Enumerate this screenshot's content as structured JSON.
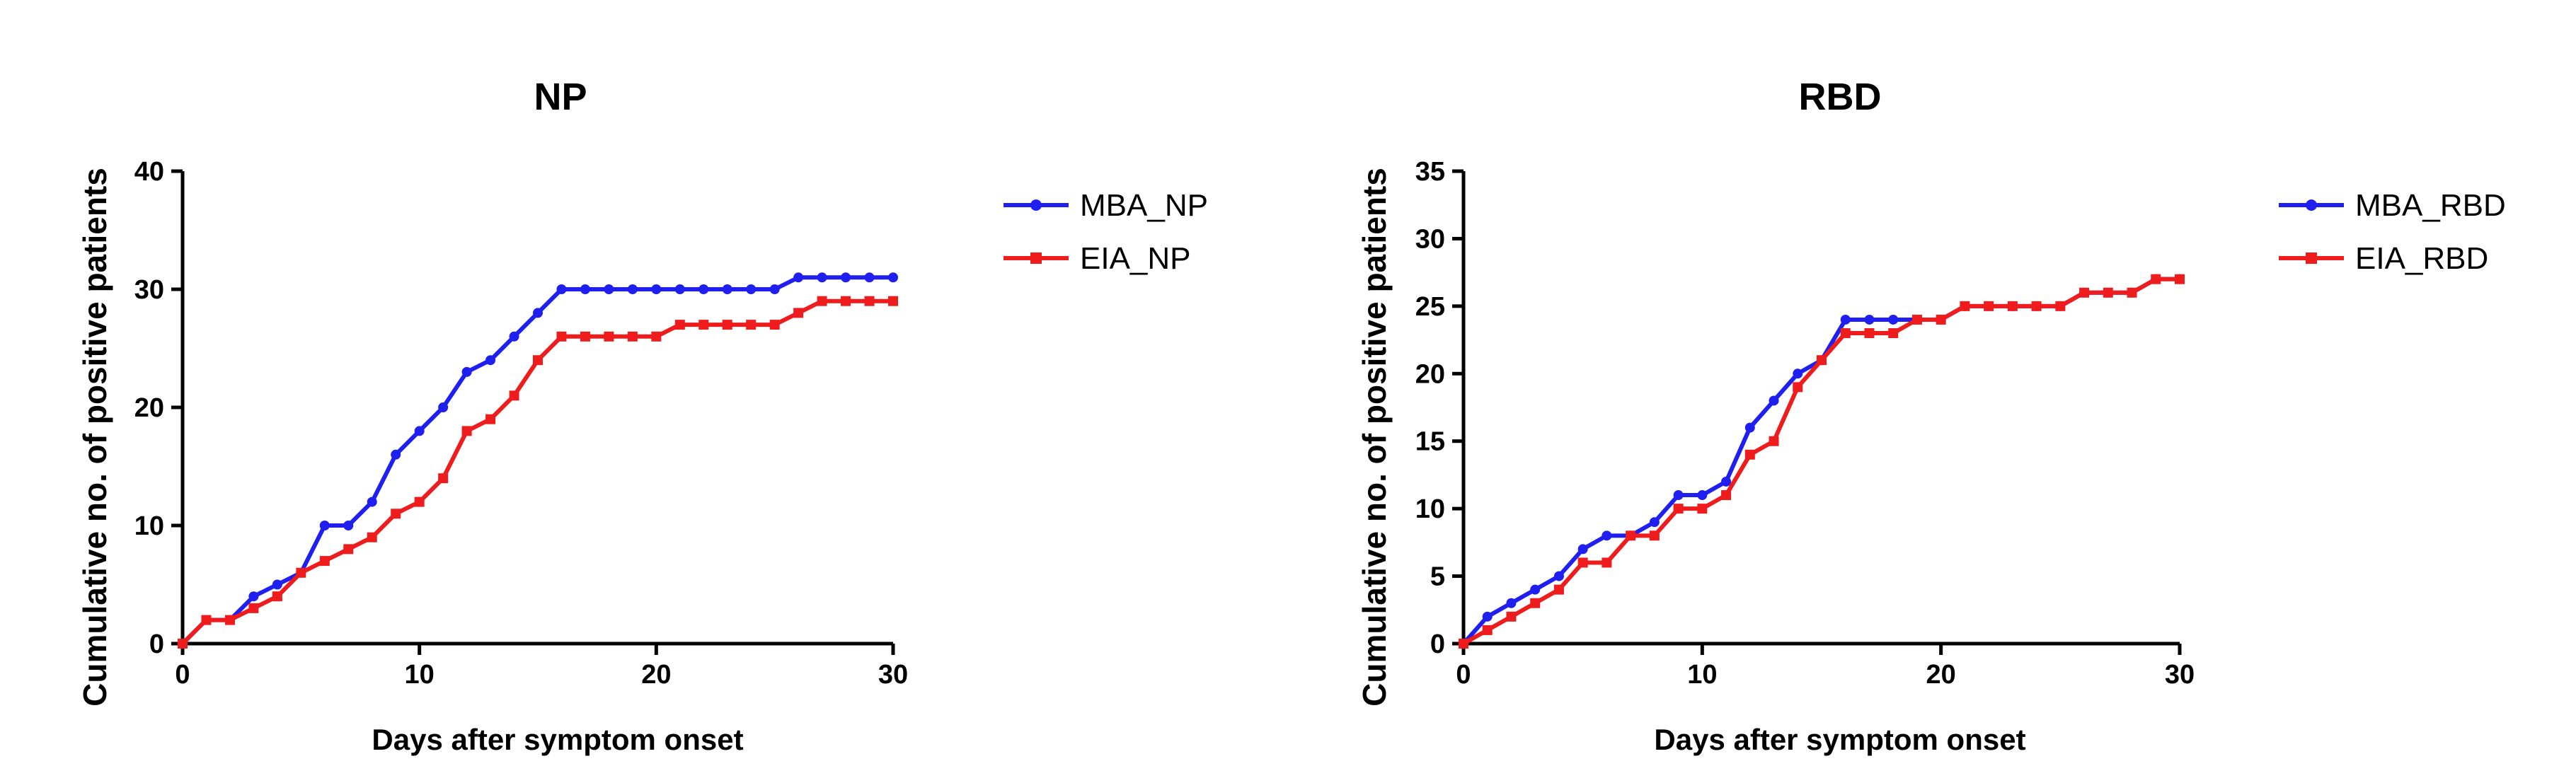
{
  "chart_data": [
    {
      "type": "line",
      "title": "NP",
      "xlabel": "Days after symptom onset",
      "ylabel": "Cumulative no. of positive patients",
      "xlim": [
        0,
        30
      ],
      "ylim": [
        0,
        40
      ],
      "xticks": [
        0,
        10,
        20,
        30
      ],
      "yticks": [
        0,
        10,
        20,
        30,
        40
      ],
      "legend_position": "right",
      "x": [
        0,
        1,
        2,
        3,
        4,
        5,
        6,
        7,
        8,
        9,
        10,
        11,
        12,
        13,
        14,
        15,
        16,
        17,
        18,
        19,
        20,
        21,
        22,
        23,
        24,
        25,
        26,
        27,
        28,
        29,
        30
      ],
      "series": [
        {
          "name": "MBA_NP",
          "color": "#1f1ff0",
          "marker": "circle",
          "values": [
            0,
            2,
            2,
            4,
            5,
            6,
            10,
            10,
            12,
            16,
            18,
            20,
            23,
            24,
            26,
            28,
            30,
            30,
            30,
            30,
            30,
            30,
            30,
            30,
            30,
            30,
            31,
            31,
            31,
            31,
            31
          ]
        },
        {
          "name": "EIA_NP",
          "color": "#ee1c1c",
          "marker": "square",
          "values": [
            0,
            2,
            2,
            3,
            4,
            6,
            7,
            8,
            9,
            11,
            12,
            14,
            18,
            19,
            21,
            24,
            26,
            26,
            26,
            26,
            26,
            27,
            27,
            27,
            27,
            27,
            28,
            29,
            29,
            29,
            29
          ]
        }
      ]
    },
    {
      "type": "line",
      "title": "RBD",
      "xlabel": "Days after symptom onset",
      "ylabel": "Cumulative no. of positive patients",
      "xlim": [
        0,
        30
      ],
      "ylim": [
        0,
        35
      ],
      "xticks": [
        0,
        10,
        20,
        30
      ],
      "yticks": [
        0,
        5,
        10,
        15,
        20,
        25,
        30,
        35
      ],
      "legend_position": "right",
      "x": [
        0,
        1,
        2,
        3,
        4,
        5,
        6,
        7,
        8,
        9,
        10,
        11,
        12,
        13,
        14,
        15,
        16,
        17,
        18,
        19,
        20,
        21,
        22,
        23,
        24,
        25,
        26,
        27,
        28,
        29,
        30
      ],
      "series": [
        {
          "name": "MBA_RBD",
          "color": "#1f1ff0",
          "marker": "circle",
          "values": [
            0,
            2,
            3,
            4,
            5,
            7,
            8,
            8,
            9,
            11,
            11,
            12,
            16,
            18,
            20,
            21,
            24,
            24,
            24,
            24,
            24,
            25,
            25,
            25,
            25,
            25,
            26,
            26,
            26,
            27,
            27
          ]
        },
        {
          "name": "EIA_RBD",
          "color": "#ee1c1c",
          "marker": "square",
          "values": [
            0,
            1,
            2,
            3,
            4,
            6,
            6,
            8,
            8,
            10,
            10,
            11,
            14,
            15,
            19,
            21,
            23,
            23,
            23,
            24,
            24,
            25,
            25,
            25,
            25,
            25,
            26,
            26,
            26,
            27,
            27
          ]
        }
      ]
    }
  ]
}
